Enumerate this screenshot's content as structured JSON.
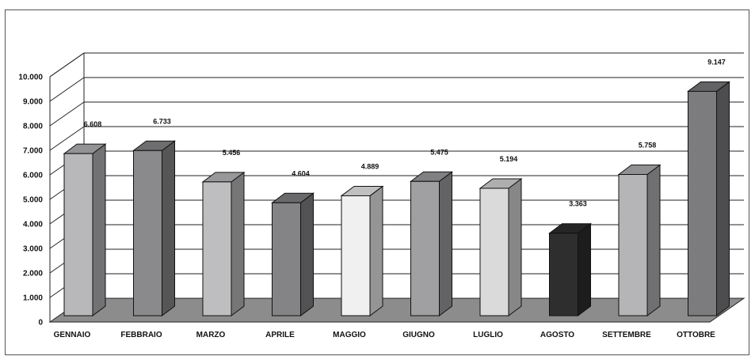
{
  "chart_data": {
    "type": "bar",
    "title": "",
    "xlabel": "",
    "ylabel": "",
    "ylim": [
      0,
      10000
    ],
    "yticks": [
      0,
      1000,
      2000,
      3000,
      4000,
      5000,
      6000,
      7000,
      8000,
      9000,
      10000
    ],
    "ytick_labels": [
      "0",
      "1.000",
      "2.000",
      "3.000",
      "4.000",
      "5.000",
      "6.000",
      "7.000",
      "8.000",
      "9.000",
      "10.000"
    ],
    "grid": true,
    "categories": [
      "GENNAIO",
      "FEBBRAIO",
      "MARZO",
      "APRILE",
      "MAGGIO",
      "GIUGNO",
      "LUGLIO",
      "AGOSTO",
      "SETTEMBRE",
      "OTTOBRE"
    ],
    "values": [
      6608,
      6733,
      5456,
      4604,
      4889,
      5475,
      5194,
      3363,
      5758,
      9147
    ],
    "value_labels": [
      "6.608",
      "6.733",
      "5.456",
      "4.604",
      "4.889",
      "5.475",
      "5.194",
      "3.363",
      "5.758",
      "9.147"
    ],
    "bar_colors": [
      "#b8b8bb",
      "#8a8a8d",
      "#bebec0",
      "#848487",
      "#f0f0f0",
      "#a0a0a3",
      "#dadadb",
      "#2e2e2e",
      "#b5b5b8",
      "#7c7c7f"
    ],
    "floor_color": "#8c8c8c"
  }
}
